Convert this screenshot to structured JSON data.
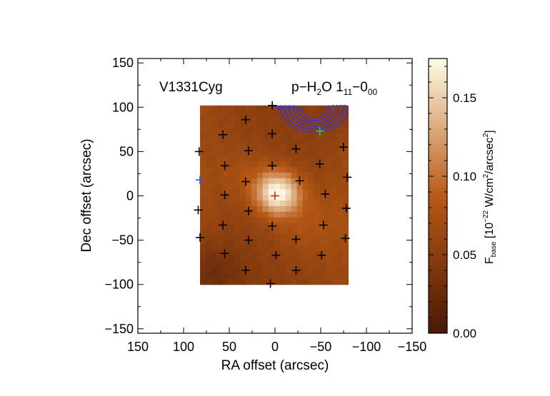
{
  "chart_data": {
    "type": "heatmap",
    "source_label": "V1331Cyg",
    "line_label": "p−H₂O 1₁₁−0₀₀",
    "xlabel": "RA offset (arcsec)",
    "ylabel": "Dec offset (arcsec)",
    "xlim": [
      150,
      -150
    ],
    "ylim": [
      -155,
      155
    ],
    "x_ticks": [
      "150",
      "100",
      "50",
      "0",
      "−50",
      "−100",
      "−150"
    ],
    "y_ticks": [
      "−150",
      "−100",
      "−50",
      "0",
      "50",
      "100",
      "150"
    ],
    "map_extent": {
      "ra": [
        82,
        -80
      ],
      "dec": [
        -100,
        102
      ]
    },
    "peak": {
      "ra": -3,
      "dec": 3,
      "value": 0.17
    },
    "colorbar": {
      "label": "F_base [10^-22 W/cm^2/arcsec^2]",
      "range": [
        0.0,
        0.175
      ],
      "ticks": [
        "0.00",
        "0.05",
        "0.10",
        "0.15"
      ],
      "tick_values": [
        0.0,
        0.05,
        0.1,
        0.15
      ]
    },
    "spaxels": {
      "black": [
        [
          3,
          102
        ],
        [
          32,
          86
        ],
        [
          57,
          69
        ],
        [
          3,
          70
        ],
        [
          83,
          50
        ],
        [
          29,
          51
        ],
        [
          -23,
          53
        ],
        [
          -75,
          55
        ],
        [
          55,
          34
        ],
        [
          3,
          34
        ],
        [
          -49,
          36
        ],
        [
          32,
          16
        ],
        [
          -27,
          17
        ],
        [
          -79,
          21
        ],
        [
          55,
          1
        ],
        [
          -55,
          2
        ],
        [
          84,
          -16
        ],
        [
          29,
          -17
        ],
        [
          -78,
          -14
        ],
        [
          57,
          -33
        ],
        [
          3,
          -34
        ],
        [
          -53,
          -33
        ],
        [
          82,
          -47
        ],
        [
          29,
          -50
        ],
        [
          -23,
          -49
        ],
        [
          -77,
          -48
        ],
        [
          55,
          -65
        ],
        [
          -1,
          -67
        ],
        [
          -51,
          -67
        ],
        [
          32,
          -84
        ],
        [
          -23,
          -84
        ],
        [
          5,
          -99
        ]
      ],
      "blue": [
        [
          82,
          18
        ]
      ],
      "green": [
        [
          -49,
          73
        ]
      ],
      "red": [
        [
          0,
          0
        ]
      ]
    },
    "colors": {
      "map_low": "#4a1805",
      "map_mid": "#b85a16",
      "map_high": "#fffce8",
      "contour": "#3333dd",
      "marker_black": "#000000",
      "marker_blue": "#1e5fe6",
      "marker_green": "#2ecc40",
      "marker_red": "#dd2211"
    }
  }
}
